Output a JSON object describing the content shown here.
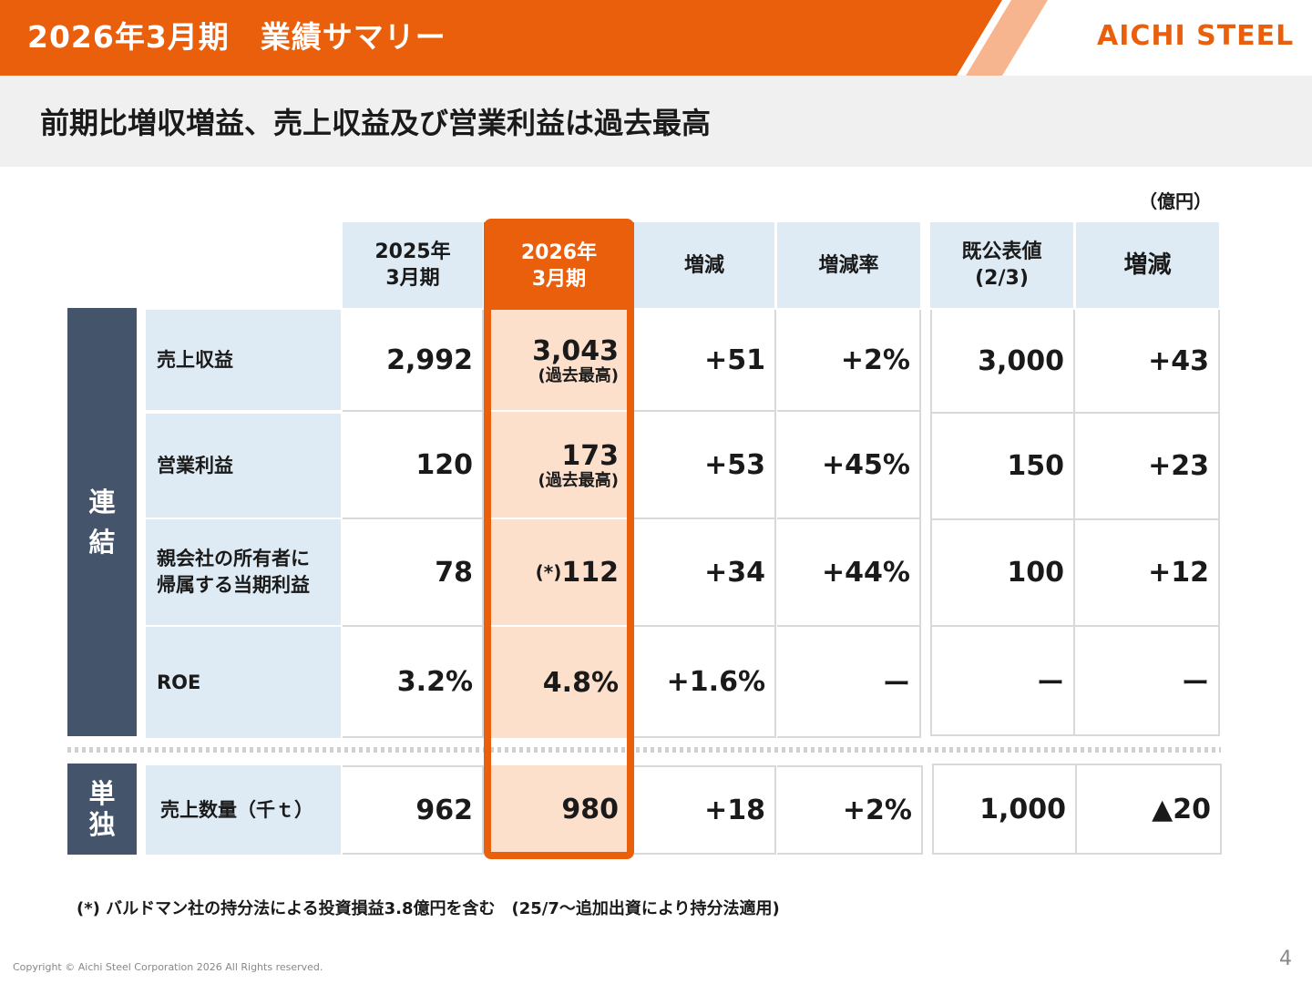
{
  "header": {
    "title": "2026年3月期　業績サマリー",
    "logo_text": "AICHI STEEL",
    "accent_color": "#ea5f0b"
  },
  "subtitle": "前期比増収増益、売上収益及び営業利益は過去最高",
  "unit": "（億円）",
  "columns": {
    "fy2025": [
      "2025年",
      "3月期"
    ],
    "fy2026": [
      "2026年",
      "3月期"
    ],
    "change": "増減",
    "change_rate": "増減率",
    "forecast": [
      "既公表値",
      "(2/3)"
    ],
    "forecast_change": "増減"
  },
  "side_labels": {
    "consolidated": [
      "連",
      "結"
    ],
    "standalone": [
      "単",
      "独"
    ]
  },
  "rows": [
    {
      "label": [
        "売上収益"
      ],
      "fy2025": "2,992",
      "fy2026": "3,043",
      "fy2026_note": "(過去最高)",
      "fy2026_prefix": "",
      "change": "+51",
      "rate": "+2%",
      "forecast": "3,000",
      "forecast_change": "+43"
    },
    {
      "label": [
        "営業利益"
      ],
      "fy2025": "120",
      "fy2026": "173",
      "fy2026_note": "(過去最高)",
      "fy2026_prefix": "",
      "change": "+53",
      "rate": "+45%",
      "forecast": "150",
      "forecast_change": "+23"
    },
    {
      "label": [
        "親会社の所有者に",
        "帰属する当期利益"
      ],
      "fy2025": "78",
      "fy2026": "112",
      "fy2026_note": "",
      "fy2026_prefix": "(*)",
      "change": "+34",
      "rate": "+44%",
      "forecast": "100",
      "forecast_change": "+12"
    },
    {
      "label": [
        "ROE"
      ],
      "fy2025": "3.2%",
      "fy2026": "4.8%",
      "fy2026_note": "",
      "fy2026_prefix": "",
      "change": "+1.6%",
      "rate": "ー",
      "forecast": "ー",
      "forecast_change": "ー"
    }
  ],
  "standalone_row": {
    "label": "売上数量（千ｔ）",
    "fy2025": "962",
    "fy2026": "980",
    "change": "+18",
    "rate": "+2%",
    "forecast": "1,000",
    "forecast_change": "▲20"
  },
  "footnote": "(*) バルドマン社の持分法による投資損益3.8億円を含む　(25/7～追加出資により持分法適用)",
  "copyright": "Copyright © Aichi Steel Corporation 2026 All Rights reserved.",
  "page_number": "4"
}
